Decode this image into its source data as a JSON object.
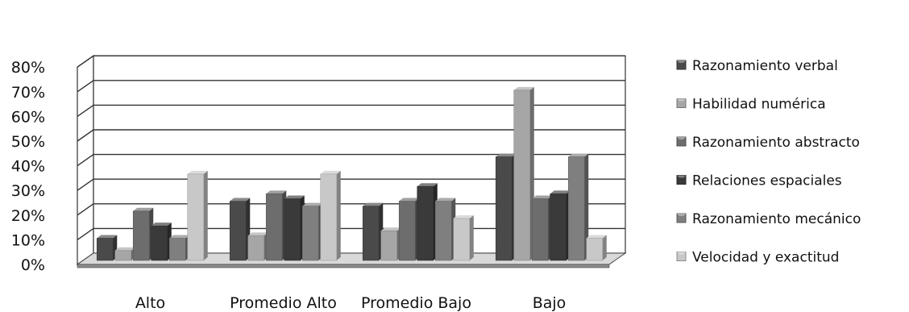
{
  "chart_data": {
    "type": "bar",
    "categories": [
      "Alto",
      "Promedio Alto",
      "Promedio Bajo",
      "Bajo"
    ],
    "series": [
      {
        "name": "Razonamiento verbal",
        "values": [
          9,
          24,
          22,
          42
        ],
        "color": "#4a4a4a"
      },
      {
        "name": "Habilidad numérica",
        "values": [
          4,
          10,
          12,
          69
        ],
        "color": "#a6a6a6"
      },
      {
        "name": "Razonamiento abstracto",
        "values": [
          20,
          27,
          24,
          25
        ],
        "color": "#6d6d6d"
      },
      {
        "name": "Relaciones espaciales",
        "values": [
          14,
          25,
          30,
          27
        ],
        "color": "#3a3a3a"
      },
      {
        "name": "Razonamiento mecánico",
        "values": [
          9,
          22,
          24,
          42
        ],
        "color": "#7f7f7f"
      },
      {
        "name": "Velocidad y exactitud",
        "values": [
          35,
          35,
          17,
          9
        ],
        "color": "#c8c8c8"
      }
    ],
    "y_ticks": [
      "0%",
      "10%",
      "20%",
      "30%",
      "40%",
      "50%",
      "60%",
      "70%",
      "80%"
    ],
    "ylim": [
      0,
      80
    ],
    "grid": true,
    "legend_position": "right"
  }
}
